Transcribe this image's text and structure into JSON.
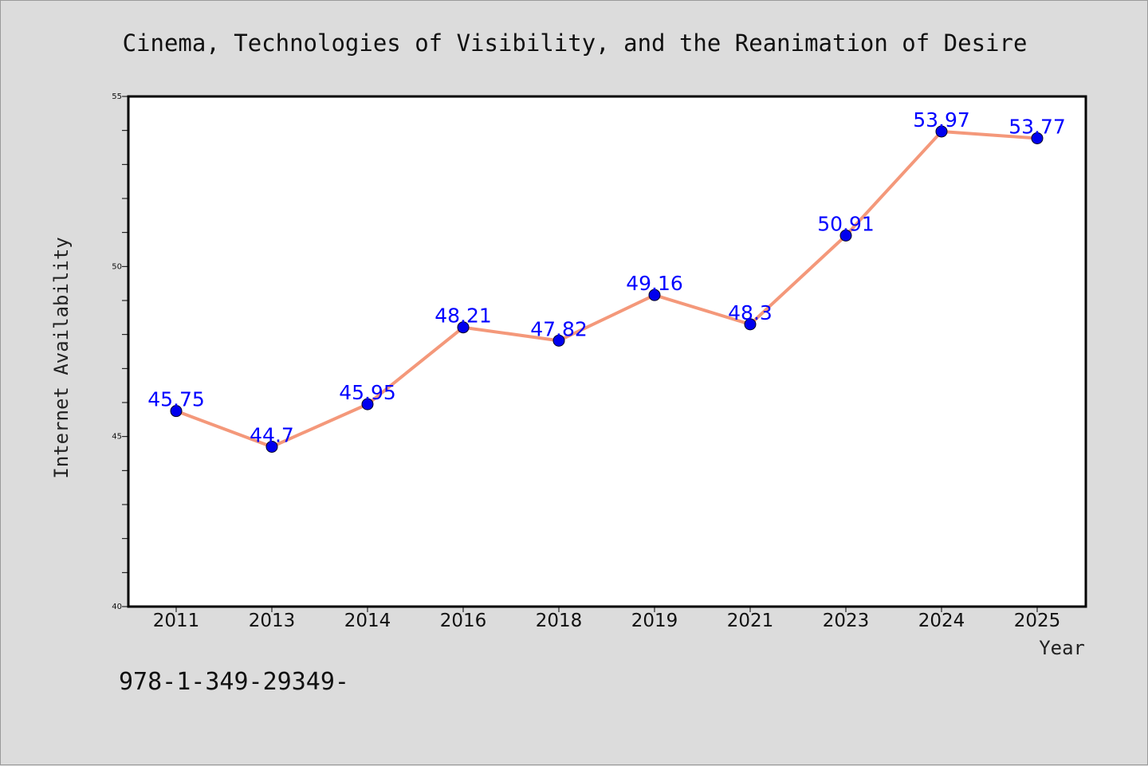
{
  "chart_data": {
    "type": "line",
    "title": "Cinema, Technologies of Visibility, and the Reanimation of Desire",
    "xlabel": "Year",
    "ylabel": "Internet Availability",
    "categories": [
      "2011",
      "2013",
      "2014",
      "2016",
      "2018",
      "2019",
      "2021",
      "2023",
      "2024",
      "2025"
    ],
    "series": [
      {
        "values": [
          45.75,
          44.7,
          45.95,
          48.21,
          47.82,
          49.16,
          48.3,
          50.91,
          53.97,
          53.77
        ],
        "labels": [
          "45.75",
          "44.7",
          "45.95",
          "48.21",
          "47.82",
          "49.16",
          "48.3",
          "50.91",
          "53.97",
          "53.77"
        ]
      }
    ],
    "ylim": [
      40,
      55
    ],
    "yticks": [
      "40",
      "45",
      "50",
      "55"
    ],
    "grid": false,
    "line_color": "#f4987a",
    "marker_color": "#0000ee",
    "label_color": "#0000ff"
  },
  "footnote": "978-1-349-29349-"
}
